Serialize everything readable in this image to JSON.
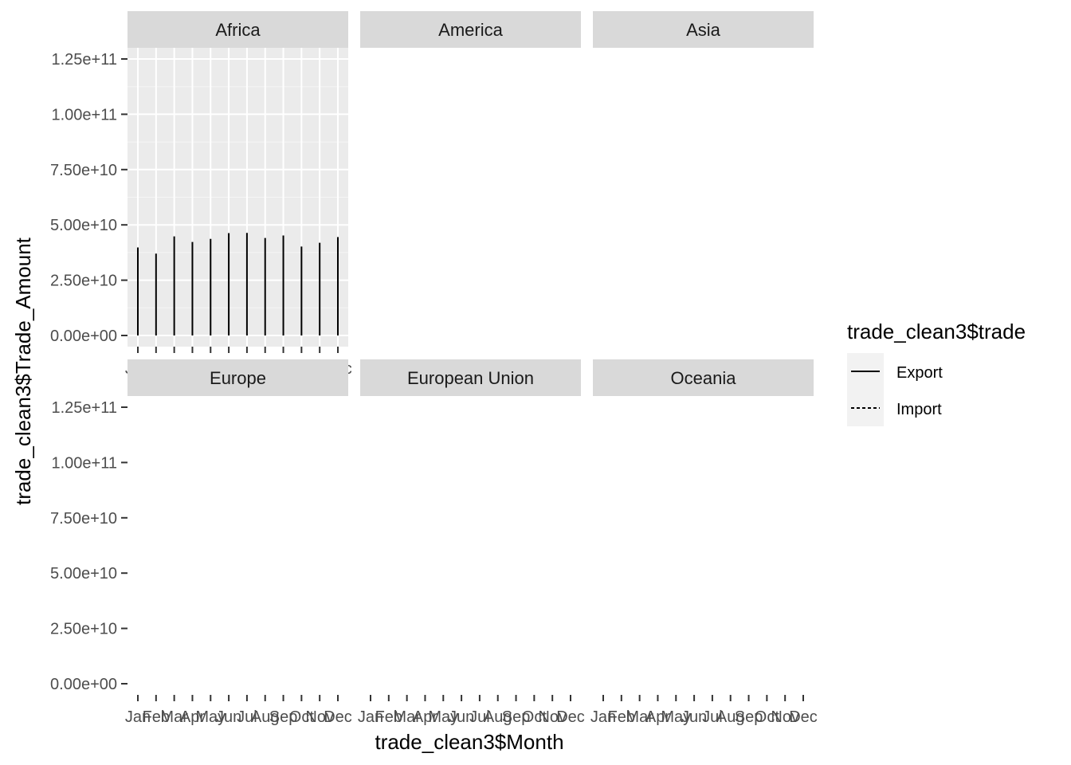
{
  "chart_data": {
    "type": "line",
    "facet_variable": "region",
    "facets": [
      "Africa",
      "America",
      "Asia",
      "Europe",
      "European Union",
      "Oceania"
    ],
    "x": [
      "Jan",
      "Feb",
      "Mar",
      "Apr",
      "May",
      "Jun",
      "Jul",
      "Aug",
      "Sep",
      "Oct",
      "Nov",
      "Dec"
    ],
    "xlabel": "trade_clean3$Month",
    "ylabel": "trade_clean3$Trade_Amount",
    "ylim": [
      0,
      125000000000
    ],
    "y_ticks": [
      0,
      25000000000,
      50000000000,
      75000000000,
      100000000000,
      125000000000
    ],
    "y_tick_labels": [
      "0.00e+00",
      "2.50e+10",
      "5.00e+10",
      "7.50e+10",
      "1.00e+11",
      "1.25e+11"
    ],
    "legend": {
      "title": "trade_clean3$trade",
      "position": "right",
      "entries": [
        {
          "label": "Export",
          "linetype": "solid"
        },
        {
          "label": "Import",
          "linetype": "dashed"
        }
      ]
    },
    "series": [
      {
        "name": "Export",
        "facet": "Africa",
        "linetype": "solid",
        "geom": "vertical segments from 0",
        "values": [
          39800000000,
          37000000000,
          44800000000,
          42300000000,
          43700000000,
          46300000000,
          46400000000,
          44100000000,
          45200000000,
          40200000000,
          41900000000,
          44500000000
        ]
      }
    ],
    "panel_background": "#ebebeb",
    "strip_background": "#d9d9d9",
    "gridlines": true
  }
}
